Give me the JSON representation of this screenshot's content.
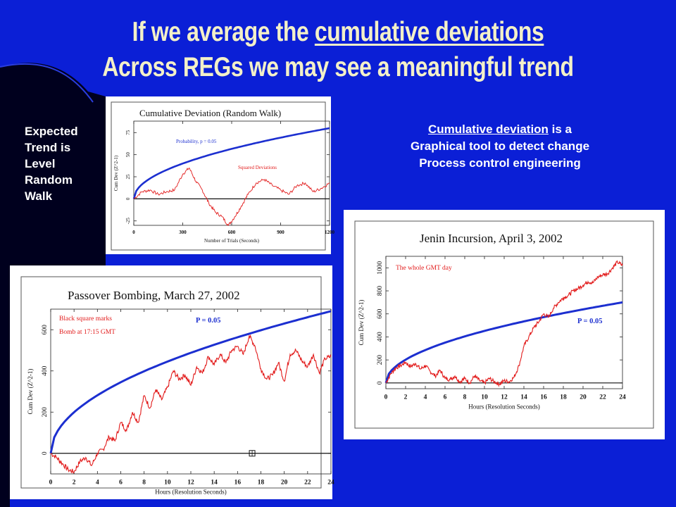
{
  "slide": {
    "title_line1_pre": "If we average the ",
    "title_line1_link": "cumulative deviations",
    "title_line2": "Across REGs we may see a meaningful trend",
    "expected_lines": [
      "Expected",
      "Trend is",
      "Level",
      "Random",
      "Walk"
    ],
    "cumdev_link": "Cumulative deviation",
    "cumdev_rest": " is a",
    "cumdev_line2": "Graphical tool to detect change",
    "cumdev_line3": "Process control engineering"
  },
  "colors": {
    "background": "#0b1fd6",
    "title": "#f3f0c8",
    "probability_curve": "#1c2fd0",
    "deviation_trace": "#e21b1b"
  },
  "chart_data": [
    {
      "id": "random-walk",
      "type": "line",
      "title": "Cumulative Deviation (Random Walk)",
      "xlabel": "Number of Trials (Seconds)",
      "ylabel": "Cum Dev (Z^2-1)",
      "xlim": [
        0,
        1200
      ],
      "ylim": [
        -30,
        88
      ],
      "xticks": [
        0,
        300,
        600,
        900,
        1200
      ],
      "yticks": [
        -25,
        0,
        25,
        50,
        75
      ],
      "annotations": [
        "Probability, p = 0.05",
        "Squared Deviations"
      ],
      "series": [
        {
          "label": "Probability, p = 0.05",
          "kind": "probability",
          "scale": 2.3,
          "x": [
            0,
            100,
            200,
            300,
            400,
            500,
            600,
            700,
            800,
            900,
            1000,
            1100,
            1200
          ]
        },
        {
          "label": "Squared Deviations",
          "kind": "trace",
          "x": [
            0,
            50,
            100,
            150,
            200,
            250,
            300,
            340,
            380,
            420,
            460,
            500,
            540,
            580,
            620,
            660,
            700,
            750,
            800,
            850,
            900,
            950,
            1000,
            1050,
            1100,
            1150,
            1200
          ],
          "y": [
            0,
            8,
            10,
            5,
            8,
            10,
            28,
            35,
            20,
            10,
            -5,
            -15,
            -20,
            -30,
            -20,
            -8,
            5,
            18,
            22,
            15,
            10,
            5,
            15,
            18,
            8,
            12,
            18
          ]
        }
      ]
    },
    {
      "id": "passover",
      "type": "line",
      "title": "Passover Bombing, March 27, 2002",
      "xlabel": "Hours (Resolution Seconds)",
      "ylabel": "Cum Dev (Z^2-1)",
      "xlim": [
        0,
        24
      ],
      "ylim": [
        -100,
        700
      ],
      "xticks": [
        0,
        2,
        4,
        6,
        8,
        10,
        12,
        14,
        16,
        18,
        20,
        22,
        24
      ],
      "yticks": [
        0,
        200,
        400,
        600
      ],
      "annotations": [
        "Black square marks",
        "Bomb at 17:15 GMT"
      ],
      "probability_label": "P = 0.05",
      "event_marker": {
        "x": 17.25,
        "y": 0
      },
      "series": [
        {
          "label": "P = 0.05",
          "kind": "probability",
          "scale": 0.48,
          "x": [
            0,
            1,
            2,
            3,
            4,
            5,
            6,
            7,
            8,
            9,
            10,
            11,
            12,
            13,
            14,
            15,
            16,
            17,
            18,
            19,
            20,
            21,
            22,
            23,
            24
          ]
        },
        {
          "label": "Cumulative deviation",
          "kind": "trace",
          "x": [
            0,
            0.5,
            1,
            1.5,
            2,
            2.5,
            3,
            3.5,
            4,
            4.5,
            5,
            5.5,
            6,
            6.5,
            7,
            7.5,
            8,
            8.5,
            9,
            9.5,
            10,
            10.5,
            11,
            11.5,
            12,
            12.5,
            13,
            13.5,
            14,
            14.5,
            15,
            15.5,
            16,
            16.5,
            17,
            17.5,
            18,
            18.5,
            19,
            19.5,
            20,
            20.5,
            21,
            21.5,
            22,
            22.5,
            23,
            23.5,
            24
          ],
          "y": [
            0,
            -20,
            -50,
            -80,
            -90,
            -40,
            -20,
            -60,
            0,
            20,
            80,
            60,
            150,
            110,
            200,
            150,
            280,
            220,
            310,
            260,
            320,
            400,
            360,
            380,
            330,
            420,
            390,
            470,
            430,
            480,
            440,
            500,
            520,
            480,
            570,
            520,
            410,
            360,
            380,
            440,
            350,
            480,
            500,
            450,
            420,
            480,
            390,
            460,
            470
          ]
        }
      ]
    },
    {
      "id": "jenin",
      "type": "line",
      "title": "Jenin Incursion, April 3, 2002",
      "xlabel": "Hours (Resolution Seconds)",
      "ylabel": "Cum Dev (Z^2-1)",
      "xlim": [
        0,
        24
      ],
      "ylim": [
        -50,
        1100
      ],
      "xticks": [
        0,
        2,
        4,
        6,
        8,
        10,
        12,
        14,
        16,
        18,
        20,
        22,
        24
      ],
      "yticks": [
        0,
        200,
        400,
        600,
        800,
        1000
      ],
      "annotations": [
        "The whole GMT day"
      ],
      "probability_label": "P = 0.05",
      "series": [
        {
          "label": "P = 0.05",
          "kind": "probability",
          "scale": 0.48,
          "x": [
            0,
            1,
            2,
            3,
            4,
            5,
            6,
            7,
            8,
            9,
            10,
            11,
            12,
            13,
            14,
            15,
            16,
            17,
            18,
            19,
            20,
            21,
            22,
            23,
            24
          ]
        },
        {
          "label": "The whole GMT day",
          "kind": "trace",
          "x": [
            0,
            0.5,
            1,
            1.5,
            2,
            2.5,
            3,
            3.5,
            4,
            4.5,
            5,
            5.5,
            6,
            6.5,
            7,
            7.5,
            8,
            8.5,
            9,
            9.5,
            10,
            10.5,
            11,
            11.5,
            12,
            12.5,
            13,
            13.5,
            14,
            14.5,
            15,
            15.5,
            16,
            16.5,
            17,
            17.5,
            18,
            18.5,
            19,
            19.5,
            20,
            20.5,
            21,
            21.5,
            22,
            22.5,
            23,
            23.5,
            24
          ],
          "y": [
            0,
            80,
            130,
            150,
            180,
            140,
            170,
            120,
            150,
            100,
            60,
            110,
            40,
            30,
            60,
            10,
            40,
            0,
            60,
            20,
            0,
            40,
            10,
            -10,
            20,
            10,
            50,
            150,
            320,
            400,
            480,
            530,
            600,
            570,
            650,
            700,
            740,
            760,
            800,
            820,
            850,
            880,
            870,
            920,
            940,
            950,
            1000,
            1050,
            1020
          ]
        }
      ]
    }
  ]
}
